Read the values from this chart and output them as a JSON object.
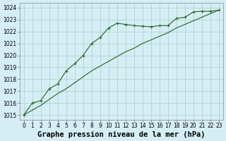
{
  "xlabel": "Graphe pression niveau de la mer (hPa)",
  "bg_color": "#d5eef5",
  "grid_color": "#b0d4c8",
  "line_color": "#2d6b2d",
  "x_hours": [
    0,
    1,
    2,
    3,
    4,
    5,
    6,
    7,
    8,
    9,
    10,
    11,
    12,
    13,
    14,
    15,
    16,
    17,
    18,
    19,
    20,
    21,
    22,
    23
  ],
  "y_measured": [
    1015.0,
    1016.0,
    1016.2,
    1017.2,
    1017.6,
    1018.7,
    1019.3,
    1020.0,
    1021.0,
    1021.5,
    1022.3,
    1022.7,
    1022.6,
    1022.5,
    1022.45,
    1022.4,
    1022.5,
    1022.5,
    1023.1,
    1023.2,
    1023.65,
    1023.7,
    1023.7,
    1023.8
  ],
  "y_trend": [
    1015.0,
    1015.4,
    1015.8,
    1016.3,
    1016.8,
    1017.2,
    1017.7,
    1018.2,
    1018.7,
    1019.1,
    1019.5,
    1019.9,
    1020.3,
    1020.6,
    1021.0,
    1021.3,
    1021.6,
    1021.9,
    1022.3,
    1022.6,
    1022.9,
    1023.2,
    1023.5,
    1023.8
  ],
  "ylim": [
    1014.6,
    1024.4
  ],
  "yticks": [
    1015,
    1016,
    1017,
    1018,
    1019,
    1020,
    1021,
    1022,
    1023,
    1024
  ],
  "xticks": [
    0,
    1,
    2,
    3,
    4,
    5,
    6,
    7,
    8,
    9,
    10,
    11,
    12,
    13,
    14,
    15,
    16,
    17,
    18,
    19,
    20,
    21,
    22,
    23
  ],
  "tick_fontsize": 5.5,
  "label_fontsize": 7.5
}
